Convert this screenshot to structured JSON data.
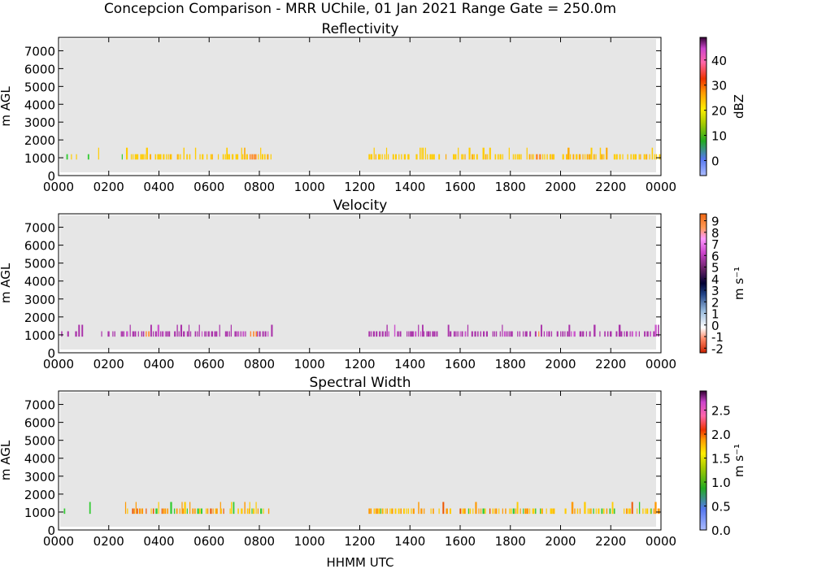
{
  "figure": {
    "title": "Concepcion Comparison - MRR UChile, 01 Jan 2021 Range Gate = 250.0m",
    "xlabel": "HHMM UTC"
  },
  "chart_data": [
    {
      "type": "heatmap",
      "title": "Reflectivity",
      "ylabel": "m AGL",
      "x_ticks": [
        "0000",
        "0200",
        "0400",
        "0600",
        "0800",
        "1000",
        "1200",
        "1400",
        "1600",
        "1800",
        "2000",
        "2200",
        "0000"
      ],
      "y_ticks": [
        0,
        1000,
        2000,
        3000,
        4000,
        5000,
        6000,
        7000
      ],
      "xlim": [
        0,
        24
      ],
      "ylim": [
        0,
        7750
      ],
      "colorbar": {
        "label": "dBZ",
        "ticks": [
          "0",
          "10",
          "20",
          "30",
          "40"
        ],
        "range": [
          -6,
          49
        ]
      },
      "data_value": "yellow",
      "gaps": [
        [
          8.5,
          12.35
        ]
      ]
    },
    {
      "type": "heatmap",
      "title": "Velocity",
      "ylabel": "m AGL",
      "x_ticks": [
        "0000",
        "0200",
        "0400",
        "0600",
        "0800",
        "1000",
        "1200",
        "1400",
        "1600",
        "1800",
        "2000",
        "2200",
        "0000"
      ],
      "y_ticks": [
        0,
        1000,
        2000,
        3000,
        4000,
        5000,
        6000,
        7000
      ],
      "xlim": [
        0,
        24
      ],
      "ylim": [
        0,
        7750
      ],
      "colorbar": {
        "label": "m s⁻¹",
        "ticks": [
          "-2",
          "-1",
          "0",
          "1",
          "2",
          "3",
          "4",
          "5",
          "6",
          "7",
          "8",
          "9"
        ],
        "range": [
          -2.4,
          9.6
        ]
      },
      "data_value": "purple",
      "gaps": [
        [
          8.5,
          12.35
        ]
      ]
    },
    {
      "type": "heatmap",
      "title": "Spectral Width",
      "ylabel": "m AGL",
      "x_ticks": [
        "0000",
        "0200",
        "0400",
        "0600",
        "0800",
        "1000",
        "1200",
        "1400",
        "1600",
        "1800",
        "2000",
        "2200",
        "0000"
      ],
      "y_ticks": [
        0,
        1000,
        2000,
        3000,
        4000,
        5000,
        6000,
        7000
      ],
      "xlim": [
        0,
        24
      ],
      "ylim": [
        0,
        7750
      ],
      "colorbar": {
        "label": "m s⁻¹",
        "ticks": [
          "0.0",
          "0.5",
          "1.0",
          "1.5",
          "2.0",
          "2.5"
        ],
        "range": [
          0,
          2.9
        ]
      },
      "data_value": "mixed",
      "gaps": [
        [
          8.5,
          12.35
        ]
      ]
    }
  ]
}
